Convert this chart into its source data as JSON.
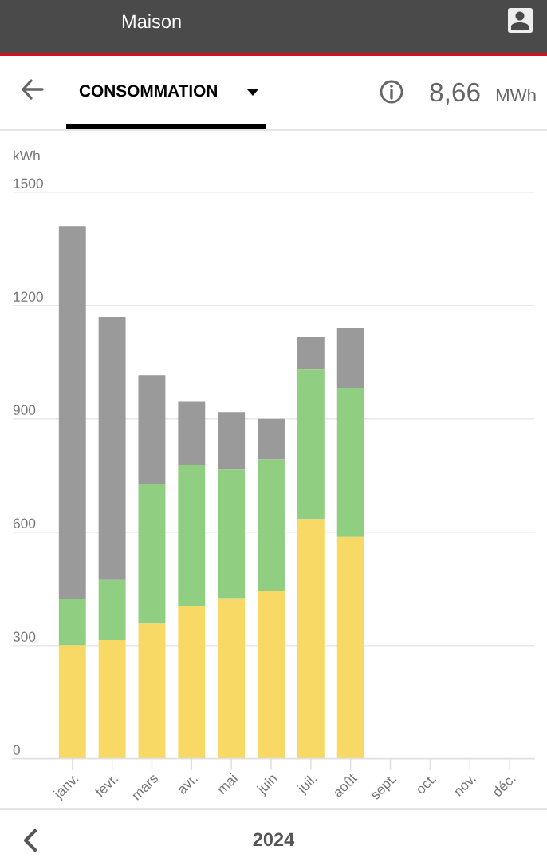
{
  "chart_data": {
    "type": "bar",
    "stacked": true,
    "title": "CONSOMMATION",
    "subtitle": "Maison",
    "ylabel": "kWh",
    "annotations": [
      "8,66",
      "MWh",
      "2024"
    ],
    "categories": [
      "janv.",
      "févr.",
      "mars",
      "avr.",
      "mai",
      "juin",
      "juil.",
      "août",
      "sept.",
      "oct.",
      "nov.",
      "déc."
    ],
    "series": [
      {
        "color": "#f8d966",
        "values": [
          301,
          314,
          358,
          405,
          425,
          445,
          635,
          587,
          null,
          null,
          null,
          null
        ]
      },
      {
        "color": "#90ce81",
        "values": [
          121,
          159,
          368,
          374,
          341,
          348,
          397,
          395,
          null,
          null,
          null,
          null
        ]
      },
      {
        "color": "#9a9a9a",
        "values": [
          988,
          697,
          289,
          166,
          152,
          107,
          85,
          158,
          null,
          null,
          null,
          null
        ]
      }
    ],
    "ylim": [
      0,
      1500
    ],
    "yticks": [
      0,
      300,
      600,
      900,
      1200,
      1500
    ],
    "grid": "y"
  }
}
